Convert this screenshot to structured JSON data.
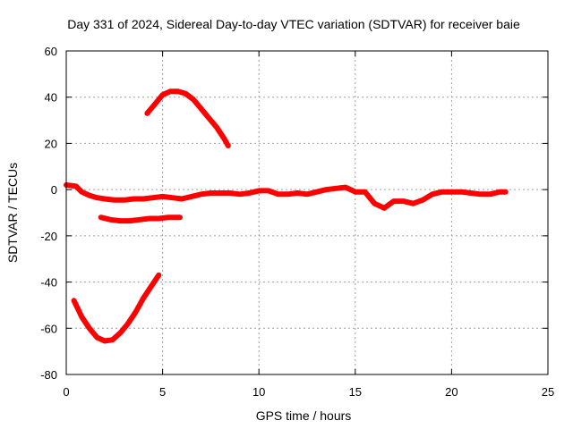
{
  "chart_data": {
    "type": "line",
    "title": "Day 331 of 2024, Sidereal Day-to-day VTEC variation (SDTVAR) for receiver baie",
    "xlabel": "GPS time / hours",
    "ylabel": "SDTVAR / TECUs",
    "xlim": [
      0,
      25
    ],
    "ylim": [
      -80,
      60
    ],
    "xticks": [
      0,
      5,
      10,
      15,
      20,
      25
    ],
    "yticks": [
      60,
      40,
      20,
      0,
      -20,
      -40,
      -60,
      -80
    ],
    "xtick_labels": [
      "0",
      "5",
      "10",
      "15",
      "20",
      "25"
    ],
    "ytick_labels": [
      "60",
      "40",
      "20",
      "0",
      "-20",
      "-40",
      "-60",
      "-80"
    ],
    "grid": true,
    "line_color": "#ff0000",
    "series": [
      {
        "name": "main",
        "x": [
          0,
          0.5,
          0.8,
          1.2,
          1.6,
          2.0,
          2.5,
          3.0,
          3.5,
          4.0,
          4.5,
          5.0,
          5.5,
          6.0,
          6.5,
          7.0,
          7.5,
          8.0,
          8.5,
          9.0,
          9.5,
          10.0,
          10.5,
          11.0,
          11.5,
          12.0,
          12.5,
          13.0,
          13.5,
          14.0,
          14.5,
          15.0,
          15.5,
          16.0,
          16.5,
          17.0,
          17.5,
          18.0,
          18.5,
          19.0,
          19.5,
          20.0,
          20.5,
          21.0,
          21.5,
          22.0,
          22.5,
          22.8
        ],
        "y": [
          2,
          1.5,
          -1,
          -2.5,
          -3.5,
          -4,
          -4.5,
          -4.5,
          -4,
          -4,
          -3.5,
          -3,
          -3.5,
          -4,
          -3,
          -2,
          -1.5,
          -1.5,
          -1.5,
          -2,
          -1.5,
          -0.5,
          -0.5,
          -2,
          -2,
          -1.5,
          -2,
          -1,
          0,
          0.5,
          1,
          -1,
          -1,
          -6,
          -8,
          -5,
          -5,
          -6,
          -4.5,
          -2,
          -1,
          -1,
          -1,
          -1.5,
          -2,
          -2,
          -1,
          -1
        ]
      },
      {
        "name": "arc-high",
        "x": [
          4.2,
          4.6,
          5.0,
          5.4,
          5.8,
          6.2,
          6.6,
          7.0,
          7.4,
          7.8,
          8.2,
          8.4
        ],
        "y": [
          33,
          37,
          41,
          42.5,
          42.5,
          41.5,
          39,
          35,
          31,
          27,
          22,
          19
        ]
      },
      {
        "name": "segment-mid",
        "x": [
          1.8,
          2.3,
          2.8,
          3.3,
          3.8,
          4.3,
          4.8,
          5.3,
          5.8,
          5.9
        ],
        "y": [
          -12,
          -13,
          -13.5,
          -13.5,
          -13,
          -12.5,
          -12.5,
          -12,
          -12,
          -12
        ]
      },
      {
        "name": "arc-low",
        "x": [
          0.4,
          0.8,
          1.2,
          1.6,
          2.0,
          2.4,
          2.8,
          3.2,
          3.6,
          4.0,
          4.4,
          4.8
        ],
        "y": [
          -48,
          -55,
          -60,
          -64,
          -65.5,
          -65,
          -62,
          -58,
          -53,
          -47,
          -42,
          -37
        ]
      }
    ]
  }
}
